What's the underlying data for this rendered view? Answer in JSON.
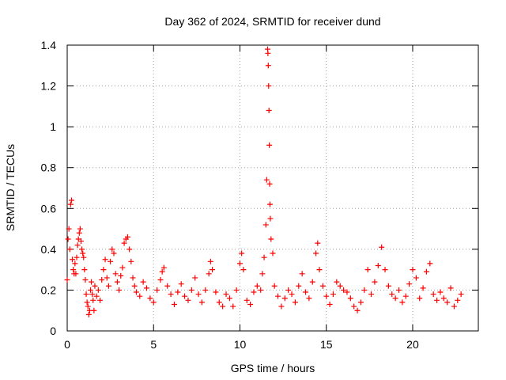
{
  "chart_data": {
    "type": "scatter",
    "title": "Day 362 of 2024, SRMTID for receiver dund",
    "xlabel": "GPS time / hours",
    "ylabel": "SRMTID / TECUs",
    "xlim": [
      0,
      23.8
    ],
    "ylim": [
      0,
      1.4
    ],
    "xticks": [
      0,
      5,
      10,
      15,
      20
    ],
    "xtick_labels": [
      "0",
      "5",
      "10",
      "15",
      "20"
    ],
    "yticks": [
      0,
      0.2,
      0.4,
      0.6,
      0.8,
      1,
      1.2,
      1.4
    ],
    "ytick_labels": [
      "0",
      "0.2",
      "0.4",
      "0.6",
      "0.8",
      "1",
      "1.2",
      "1.4"
    ],
    "grid": true,
    "marker": "+",
    "color": "#ff0000",
    "series": [
      {
        "name": "SRMTID",
        "points": [
          [
            0.0,
            0.25
          ],
          [
            0.05,
            0.45
          ],
          [
            0.1,
            0.5
          ],
          [
            0.15,
            0.4
          ],
          [
            0.2,
            0.62
          ],
          [
            0.25,
            0.64
          ],
          [
            0.3,
            0.35
          ],
          [
            0.35,
            0.3
          ],
          [
            0.4,
            0.28
          ],
          [
            0.45,
            0.33
          ],
          [
            0.5,
            0.28
          ],
          [
            0.55,
            0.36
          ],
          [
            0.6,
            0.42
          ],
          [
            0.65,
            0.45
          ],
          [
            0.7,
            0.48
          ],
          [
            0.75,
            0.5
          ],
          [
            0.8,
            0.44
          ],
          [
            0.85,
            0.4
          ],
          [
            0.9,
            0.38
          ],
          [
            0.95,
            0.36
          ],
          [
            1.0,
            0.3
          ],
          [
            1.05,
            0.25
          ],
          [
            1.1,
            0.18
          ],
          [
            1.15,
            0.14
          ],
          [
            1.2,
            0.12
          ],
          [
            1.25,
            0.08
          ],
          [
            1.3,
            0.1
          ],
          [
            1.35,
            0.2
          ],
          [
            1.4,
            0.24
          ],
          [
            1.45,
            0.18
          ],
          [
            1.5,
            0.15
          ],
          [
            1.55,
            0.1
          ],
          [
            1.6,
            0.22
          ],
          [
            1.7,
            0.17
          ],
          [
            1.8,
            0.2
          ],
          [
            1.9,
            0.15
          ],
          [
            2.0,
            0.25
          ],
          [
            2.1,
            0.3
          ],
          [
            2.2,
            0.35
          ],
          [
            2.3,
            0.26
          ],
          [
            2.4,
            0.22
          ],
          [
            2.5,
            0.34
          ],
          [
            2.6,
            0.4
          ],
          [
            2.7,
            0.38
          ],
          [
            2.8,
            0.28
          ],
          [
            2.9,
            0.24
          ],
          [
            3.0,
            0.2
          ],
          [
            3.1,
            0.27
          ],
          [
            3.2,
            0.31
          ],
          [
            3.3,
            0.43
          ],
          [
            3.4,
            0.45
          ],
          [
            3.5,
            0.46
          ],
          [
            3.6,
            0.4
          ],
          [
            3.7,
            0.34
          ],
          [
            3.8,
            0.26
          ],
          [
            3.9,
            0.22
          ],
          [
            4.0,
            0.19
          ],
          [
            4.2,
            0.17
          ],
          [
            4.4,
            0.24
          ],
          [
            4.6,
            0.21
          ],
          [
            4.8,
            0.16
          ],
          [
            5.0,
            0.14
          ],
          [
            5.2,
            0.2
          ],
          [
            5.4,
            0.25
          ],
          [
            5.5,
            0.29
          ],
          [
            5.6,
            0.31
          ],
          [
            5.8,
            0.22
          ],
          [
            6.0,
            0.18
          ],
          [
            6.2,
            0.13
          ],
          [
            6.4,
            0.19
          ],
          [
            6.6,
            0.23
          ],
          [
            6.8,
            0.17
          ],
          [
            7.0,
            0.15
          ],
          [
            7.2,
            0.2
          ],
          [
            7.4,
            0.26
          ],
          [
            7.6,
            0.18
          ],
          [
            7.8,
            0.14
          ],
          [
            8.0,
            0.2
          ],
          [
            8.2,
            0.28
          ],
          [
            8.3,
            0.34
          ],
          [
            8.4,
            0.3
          ],
          [
            8.6,
            0.19
          ],
          [
            8.8,
            0.14
          ],
          [
            9.0,
            0.12
          ],
          [
            9.2,
            0.18
          ],
          [
            9.4,
            0.16
          ],
          [
            9.6,
            0.12
          ],
          [
            9.8,
            0.2
          ],
          [
            10.0,
            0.33
          ],
          [
            10.1,
            0.38
          ],
          [
            10.2,
            0.3
          ],
          [
            10.4,
            0.15
          ],
          [
            10.6,
            0.13
          ],
          [
            10.8,
            0.19
          ],
          [
            11.0,
            0.22
          ],
          [
            11.2,
            0.2
          ],
          [
            11.3,
            0.28
          ],
          [
            11.4,
            0.36
          ],
          [
            11.5,
            0.52
          ],
          [
            11.55,
            0.74
          ],
          [
            11.6,
            1.38
          ],
          [
            11.62,
            1.36
          ],
          [
            11.64,
            1.3
          ],
          [
            11.66,
            1.2
          ],
          [
            11.68,
            1.08
          ],
          [
            11.7,
            0.91
          ],
          [
            11.72,
            0.72
          ],
          [
            11.74,
            0.62
          ],
          [
            11.76,
            0.55
          ],
          [
            11.8,
            0.45
          ],
          [
            11.9,
            0.38
          ],
          [
            12.0,
            0.22
          ],
          [
            12.2,
            0.17
          ],
          [
            12.4,
            0.12
          ],
          [
            12.6,
            0.16
          ],
          [
            12.8,
            0.2
          ],
          [
            13.0,
            0.18
          ],
          [
            13.2,
            0.14
          ],
          [
            13.4,
            0.22
          ],
          [
            13.6,
            0.28
          ],
          [
            13.8,
            0.19
          ],
          [
            14.0,
            0.16
          ],
          [
            14.2,
            0.24
          ],
          [
            14.4,
            0.38
          ],
          [
            14.5,
            0.43
          ],
          [
            14.6,
            0.3
          ],
          [
            14.8,
            0.22
          ],
          [
            15.0,
            0.17
          ],
          [
            15.2,
            0.13
          ],
          [
            15.4,
            0.18
          ],
          [
            15.6,
            0.24
          ],
          [
            15.8,
            0.22
          ],
          [
            16.0,
            0.2
          ],
          [
            16.2,
            0.19
          ],
          [
            16.4,
            0.16
          ],
          [
            16.6,
            0.12
          ],
          [
            16.8,
            0.1
          ],
          [
            17.0,
            0.14
          ],
          [
            17.2,
            0.2
          ],
          [
            17.4,
            0.3
          ],
          [
            17.6,
            0.18
          ],
          [
            17.8,
            0.24
          ],
          [
            18.0,
            0.32
          ],
          [
            18.2,
            0.41
          ],
          [
            18.4,
            0.3
          ],
          [
            18.6,
            0.22
          ],
          [
            18.8,
            0.18
          ],
          [
            19.0,
            0.16
          ],
          [
            19.2,
            0.2
          ],
          [
            19.4,
            0.14
          ],
          [
            19.6,
            0.17
          ],
          [
            19.8,
            0.23
          ],
          [
            20.0,
            0.3
          ],
          [
            20.2,
            0.26
          ],
          [
            20.4,
            0.16
          ],
          [
            20.6,
            0.21
          ],
          [
            20.8,
            0.29
          ],
          [
            21.0,
            0.33
          ],
          [
            21.2,
            0.18
          ],
          [
            21.4,
            0.15
          ],
          [
            21.6,
            0.19
          ],
          [
            21.8,
            0.16
          ],
          [
            22.0,
            0.14
          ],
          [
            22.2,
            0.21
          ],
          [
            22.4,
            0.12
          ],
          [
            22.6,
            0.15
          ],
          [
            22.8,
            0.18
          ]
        ]
      }
    ]
  }
}
